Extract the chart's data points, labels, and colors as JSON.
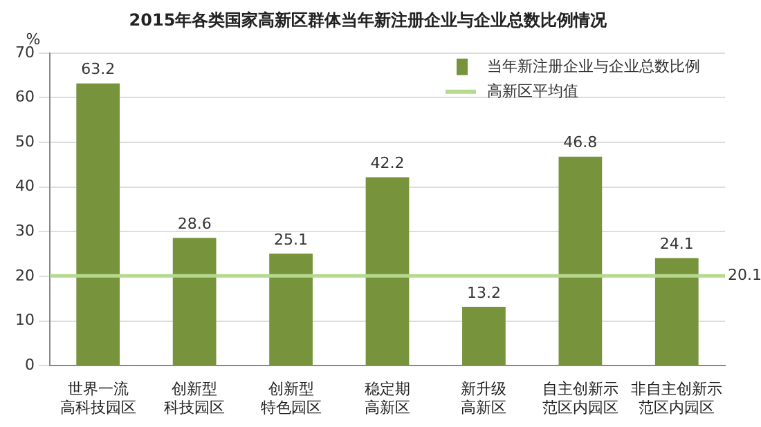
{
  "chart_data": {
    "type": "bar",
    "title": "2015年各类国家高新区群体当年新注册企业与企业总数比例情况",
    "ylabel": "%",
    "categories": [
      "世界一流高科技园区",
      "创新型科技园区",
      "创新型特色园区",
      "稳定期高新区",
      "新升级高新区",
      "自主创新示范区内园区",
      "非自主创新示范区内园区"
    ],
    "annotations": [
      "20.1"
    ],
    "series": [
      {
        "name": "当年新注册企业与企业总数比例",
        "color": "#77933c",
        "values": [
          63.2,
          28.6,
          25.1,
          42.2,
          13.2,
          46.8,
          24.1
        ]
      }
    ],
    "ylim": [
      0,
      70
    ],
    "yticks": [
      0,
      10,
      20,
      30,
      40,
      50,
      60,
      70
    ],
    "grid": "y",
    "legend": "top right",
    "data_labels": true,
    "ref_lines": [
      {
        "axis": "y",
        "value": 20.1,
        "label": "高新区平均值",
        "color": "#b5d98f"
      }
    ]
  }
}
